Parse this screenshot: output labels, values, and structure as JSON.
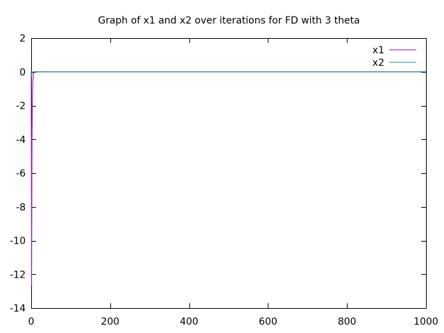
{
  "chart_data": {
    "type": "line",
    "title": "Graph of x1 and x2 over iterations for FD with 3 theta",
    "xlabel": "",
    "ylabel": "",
    "xlim": [
      0,
      1000
    ],
    "ylim": [
      -14,
      2
    ],
    "xticks": [
      0,
      200,
      400,
      600,
      800,
      1000
    ],
    "yticks": [
      2,
      0,
      -2,
      -4,
      -6,
      -8,
      -10,
      -12,
      -14
    ],
    "xtick_labels": [
      "0",
      "200",
      "400",
      "600",
      "800",
      "1000"
    ],
    "ytick_labels": [
      "2",
      "0",
      "-2",
      "-4",
      "-6",
      "-8",
      "-10",
      "-12",
      "-14"
    ],
    "grid": false,
    "legend_position": "top-right",
    "series": [
      {
        "name": "x1",
        "color": "#9400d3",
        "x": [
          0,
          1,
          2,
          3,
          4,
          6,
          8,
          1000
        ],
        "y": [
          0,
          -12.7,
          -4,
          -1.5,
          -0.6,
          -0.1,
          0,
          0
        ]
      },
      {
        "name": "x2",
        "color": "#009e73",
        "x": [
          0,
          1,
          2,
          4,
          1000
        ],
        "y": [
          0,
          -0.3,
          -0.1,
          0,
          0
        ]
      }
    ]
  }
}
